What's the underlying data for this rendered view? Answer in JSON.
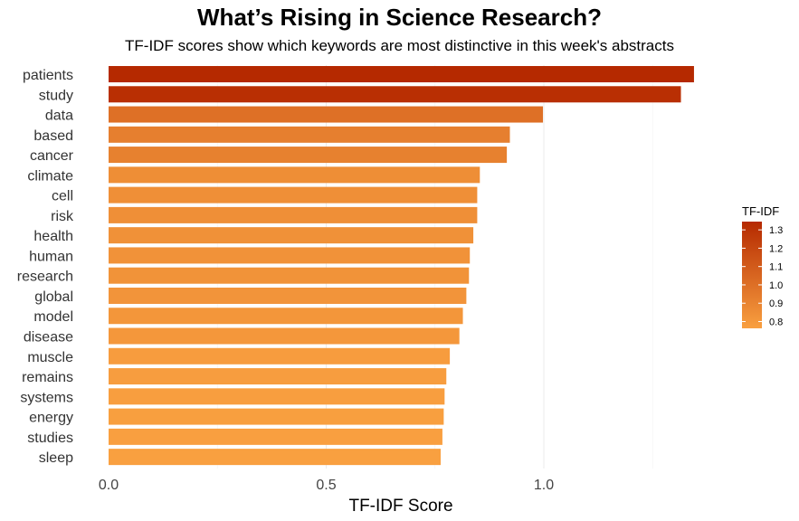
{
  "chart_data": {
    "type": "bar",
    "orientation": "horizontal",
    "title": "What’s Rising in Science Research?",
    "subtitle": "TF-IDF scores show which keywords are most distinctive in this week's abstracts",
    "xlabel": "TF-IDF Score",
    "ylabel": "",
    "xlim": [
      0,
      1.35
    ],
    "x_ticks": [
      0.0,
      0.5,
      1.0
    ],
    "x_tick_labels": [
      "0.0",
      "0.5",
      "1.0"
    ],
    "grid": true,
    "categories": [
      "patients",
      "study",
      "data",
      "based",
      "cancer",
      "climate",
      "cell",
      "risk",
      "health",
      "human",
      "research",
      "global",
      "model",
      "disease",
      "muscle",
      "remains",
      "systems",
      "energy",
      "studies",
      "sleep"
    ],
    "values": [
      1.345,
      1.315,
      0.998,
      0.922,
      0.915,
      0.853,
      0.847,
      0.847,
      0.838,
      0.83,
      0.828,
      0.822,
      0.814,
      0.806,
      0.784,
      0.776,
      0.772,
      0.77,
      0.767,
      0.763
    ],
    "legend": {
      "title": "TF-IDF",
      "placement": "right",
      "ticks": [
        0.8,
        0.9,
        1.0,
        1.1,
        1.2,
        1.3
      ],
      "tick_labels": [
        "0.8",
        "0.9",
        "1.0",
        "1.1",
        "1.2",
        "1.3"
      ],
      "range": [
        0.763,
        1.345
      ],
      "colors": {
        "low": "#f9a040",
        "high": "#b52900"
      }
    }
  }
}
